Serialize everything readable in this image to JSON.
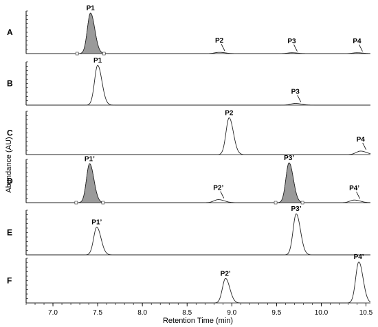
{
  "chart_data": {
    "type": "line",
    "xlabel": "Retention Time (min)",
    "ylabel": "Abundance (AU)",
    "xlim": [
      6.7,
      10.55
    ],
    "x_ticks": [
      7.0,
      7.5,
      8.0,
      8.5,
      9.0,
      9.5,
      10.0,
      10.5
    ],
    "x_tick_labels": [
      "7.0",
      "7.5",
      "8.0",
      "8.5",
      "9.0",
      "9.5",
      "10.0",
      "10.5"
    ],
    "panels": [
      {
        "label": "A",
        "peaks": [
          {
            "name": "P1",
            "rt": 7.42,
            "height": 0.95,
            "shaded": true
          },
          {
            "name": "P2",
            "rt": 8.86,
            "height": 0.03,
            "shaded": false
          },
          {
            "name": "P3",
            "rt": 9.67,
            "height": 0.02,
            "shaded": false
          },
          {
            "name": "P4",
            "rt": 10.4,
            "height": 0.02,
            "shaded": false
          }
        ]
      },
      {
        "label": "B",
        "peaks": [
          {
            "name": "P1",
            "rt": 7.5,
            "height": 0.92,
            "shaded": false
          },
          {
            "name": "P3",
            "rt": 9.71,
            "height": 0.04,
            "shaded": false
          }
        ]
      },
      {
        "label": "C",
        "peaks": [
          {
            "name": "P2",
            "rt": 8.97,
            "height": 0.85,
            "shaded": false
          },
          {
            "name": "P4",
            "rt": 10.44,
            "height": 0.08,
            "shaded": false
          }
        ]
      },
      {
        "label": "D",
        "peaks": [
          {
            "name": "P1’",
            "rt": 7.41,
            "height": 0.9,
            "shaded": true
          },
          {
            "name": "P2’",
            "rt": 8.85,
            "height": 0.07,
            "shaded": false
          },
          {
            "name": "P3’",
            "rt": 9.64,
            "height": 0.92,
            "shaded": true
          },
          {
            "name": "P4’",
            "rt": 10.37,
            "height": 0.06,
            "shaded": false
          }
        ]
      },
      {
        "label": "E",
        "peaks": [
          {
            "name": "P1’",
            "rt": 7.49,
            "height": 0.62,
            "shaded": false
          },
          {
            "name": "P3’",
            "rt": 9.72,
            "height": 0.92,
            "shaded": false
          }
        ]
      },
      {
        "label": "F",
        "peaks": [
          {
            "name": "P2’",
            "rt": 8.93,
            "height": 0.55,
            "shaded": false
          },
          {
            "name": "P4’",
            "rt": 10.42,
            "height": 0.92,
            "shaded": false
          }
        ]
      }
    ]
  }
}
